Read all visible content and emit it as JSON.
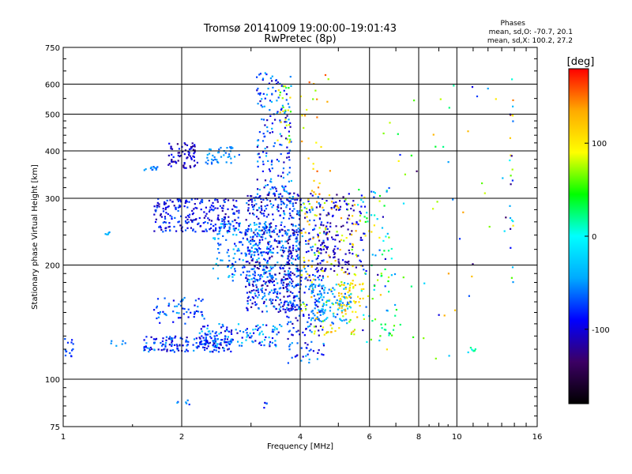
{
  "chart_data": {
    "type": "scatter",
    "title": "Tromsø 20141009 19:00:00–19:01:43",
    "subtitle": "RwPretec (8p)",
    "stats": {
      "heading": "Phases",
      "line1": "mean, sd,O: -70.7, 20.1",
      "line2": "mean, sd,X: 100.2, 27.2"
    },
    "xlabel": "Frequency [MHz]",
    "ylabel": "Stationary phase Virtual Height [km]",
    "x_scale": "log",
    "y_scale": "log",
    "xlim": [
      1,
      16
    ],
    "ylim": [
      75,
      750
    ],
    "x_ticks": [
      {
        "value": 1,
        "label": "1"
      },
      {
        "value": 2,
        "label": "2"
      },
      {
        "value": 4,
        "label": "4"
      },
      {
        "value": 6,
        "label": "6"
      },
      {
        "value": 8,
        "label": "8"
      },
      {
        "value": 10,
        "label": "10"
      },
      {
        "value": 16,
        "label": "16"
      }
    ],
    "y_ticks": [
      {
        "value": 75,
        "label": "75"
      },
      {
        "value": 100,
        "label": "100"
      },
      {
        "value": 200,
        "label": "200"
      },
      {
        "value": 300,
        "label": "300"
      },
      {
        "value": 400,
        "label": "400"
      },
      {
        "value": 500,
        "label": "500"
      },
      {
        "value": 600,
        "label": "600"
      },
      {
        "value": 750,
        "label": "750"
      }
    ],
    "grid": true,
    "colorbar": {
      "label": "[deg]",
      "range": [
        -180,
        180
      ],
      "ticks": [
        {
          "value": 100,
          "label": "100"
        },
        {
          "value": 0,
          "label": "0"
        },
        {
          "value": -100,
          "label": "-100"
        }
      ],
      "stops": [
        "#000000",
        "#3c0064",
        "#0000ff",
        "#00aaff",
        "#00ffff",
        "#00ff00",
        "#ffff00",
        "#ffaa00",
        "#ff0000"
      ]
    },
    "clusters": [
      {
        "f": [
          1.0,
          1.06
        ],
        "h": [
          112,
          130
        ],
        "phase": [
          -90,
          -60
        ],
        "n": 14
      },
      {
        "f": [
          1.25,
          1.45
        ],
        "h": [
          122,
          128
        ],
        "phase": [
          -60,
          -40
        ],
        "n": 6
      },
      {
        "f": [
          1.28,
          1.33
        ],
        "h": [
          240,
          246
        ],
        "phase": [
          -50,
          -30
        ],
        "n": 5
      },
      {
        "f": [
          1.6,
          2.7
        ],
        "h": [
          118,
          130
        ],
        "phase": [
          -120,
          -40
        ],
        "n": 170
      },
      {
        "f": [
          2.2,
          3.6
        ],
        "h": [
          122,
          140
        ],
        "phase": [
          -110,
          -20
        ],
        "n": 120
      },
      {
        "f": [
          1.7,
          2.3
        ],
        "h": [
          140,
          165
        ],
        "phase": [
          -100,
          -40
        ],
        "n": 60
      },
      {
        "f": [
          1.7,
          2.8
        ],
        "h": [
          245,
          300
        ],
        "phase": [
          -120,
          -60
        ],
        "n": 230
      },
      {
        "f": [
          1.6,
          1.75
        ],
        "h": [
          355,
          365
        ],
        "phase": [
          -80,
          -40
        ],
        "n": 12
      },
      {
        "f": [
          1.85,
          2.2
        ],
        "h": [
          360,
          420
        ],
        "phase": [
          -130,
          -80
        ],
        "n": 70
      },
      {
        "f": [
          2.3,
          2.8
        ],
        "h": [
          370,
          410
        ],
        "phase": [
          -70,
          -40
        ],
        "n": 40
      },
      {
        "f": [
          2.4,
          3.4
        ],
        "h": [
          180,
          260
        ],
        "phase": [
          -90,
          -20
        ],
        "n": 190
      },
      {
        "f": [
          2.9,
          4.0
        ],
        "h": [
          150,
          310
        ],
        "phase": [
          -130,
          -40
        ],
        "n": 520
      },
      {
        "f": [
          3.1,
          3.8
        ],
        "h": [
          300,
          650
        ],
        "phase": [
          -120,
          -30
        ],
        "n": 170
      },
      {
        "f": [
          3.5,
          3.8
        ],
        "h": [
          420,
          600
        ],
        "phase": [
          20,
          120
        ],
        "n": 25
      },
      {
        "f": [
          3.7,
          4.6
        ],
        "h": [
          110,
          310
        ],
        "phase": [
          -120,
          -40
        ],
        "n": 280
      },
      {
        "f": [
          4.0,
          5.6
        ],
        "h": [
          130,
          300
        ],
        "phase": [
          60,
          140
        ],
        "n": 150
      },
      {
        "f": [
          4.2,
          5.4
        ],
        "h": [
          140,
          180
        ],
        "phase": [
          -70,
          -20
        ],
        "n": 110
      },
      {
        "f": [
          4.4,
          5.8
        ],
        "h": [
          190,
          310
        ],
        "phase": [
          -130,
          -80
        ],
        "n": 140
      },
      {
        "f": [
          4.0,
          4.8
        ],
        "h": [
          300,
          650
        ],
        "phase": [
          60,
          160
        ],
        "n": 30
      },
      {
        "f": [
          5.0,
          5.8
        ],
        "h": [
          150,
          180
        ],
        "phase": [
          90,
          140
        ],
        "n": 40
      },
      {
        "f": [
          5.6,
          7.0
        ],
        "h": [
          125,
          330
        ],
        "phase": [
          -120,
          120
        ],
        "n": 90
      },
      {
        "f": [
          6.2,
          7.2
        ],
        "h": [
          130,
          140
        ],
        "phase": [
          -10,
          60
        ],
        "n": 12
      },
      {
        "f": [
          6.5,
          13.5
        ],
        "h": [
          110,
          600
        ],
        "phase": [
          -140,
          140
        ],
        "n": 50
      },
      {
        "f": [
          10.8,
          11.2
        ],
        "h": [
          118,
          122
        ],
        "phase": [
          -10,
          30
        ],
        "n": 6
      },
      {
        "f": [
          13.6,
          13.9
        ],
        "h": [
          180,
          630
        ],
        "phase": [
          -140,
          160
        ],
        "n": 25
      },
      {
        "f": [
          1.9,
          2.1
        ],
        "h": [
          85,
          88
        ],
        "phase": [
          -80,
          -40
        ],
        "n": 6
      },
      {
        "f": [
          3.2,
          3.3
        ],
        "h": [
          83,
          87
        ],
        "phase": [
          -100,
          -60
        ],
        "n": 4
      }
    ]
  }
}
